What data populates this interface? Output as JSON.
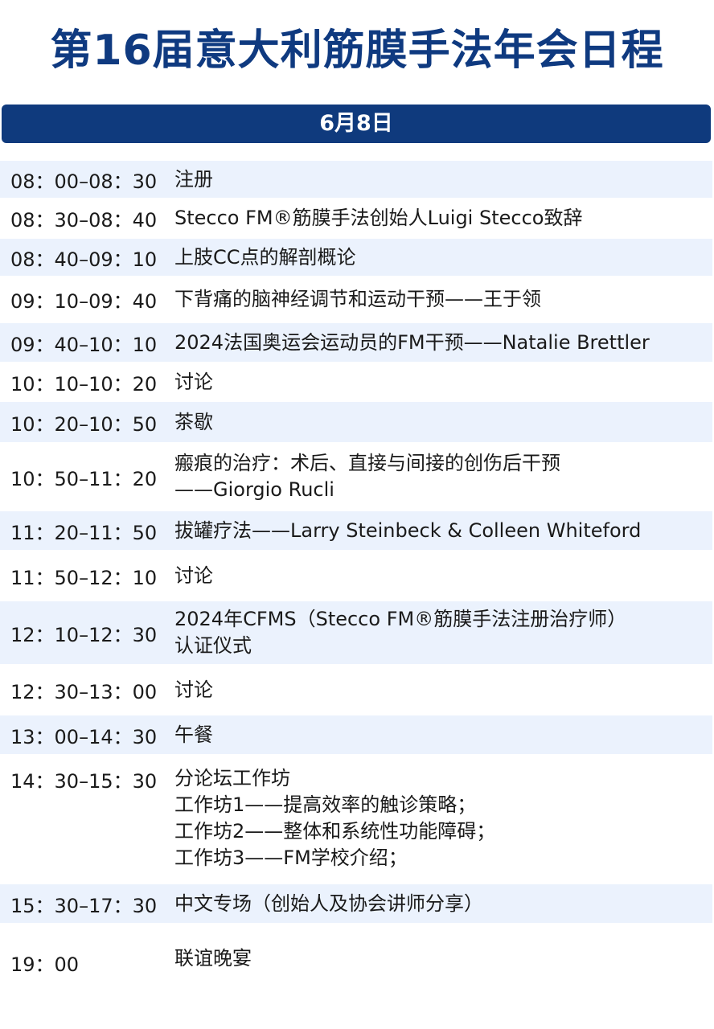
{
  "title": "第16届意大利筋膜手法年会日程",
  "date": "6月8日",
  "colors": {
    "primary": "#0f3a7d",
    "row_shade": "#ebf2fd"
  },
  "schedule": [
    {
      "time": "08：00–08：30",
      "desc": "注册"
    },
    {
      "time": "08：30–08：40",
      "desc": "Stecco FM®筋膜手法创始人Luigi Stecco致辞"
    },
    {
      "time": "08：40–09：10",
      "desc": "上肢CC点的解剖概论"
    },
    {
      "time": "09：10–09：40",
      "desc": "下背痛的脑神经调节和运动干预——王于领"
    },
    {
      "time": "09：40–10：10",
      "desc": "2024法国奥运会运动员的FM干预——Natalie Brettler"
    },
    {
      "time": "10：10–10：20",
      "desc": "讨论"
    },
    {
      "time": "10：20–10：50",
      "desc": "茶歇"
    },
    {
      "time": "10：50–11：20",
      "desc": "瘢痕的治疗：术后、直接与间接的创伤后干预\n——Giorgio Rucli"
    },
    {
      "time": "11：20–11：50",
      "desc": "拔罐疗法——Larry Steinbeck & Colleen Whiteford"
    },
    {
      "time": "11：50–12：10",
      "desc": "讨论"
    },
    {
      "time": "12：10–12：30",
      "desc": "2024年CFMS（Stecco FM®筋膜手法注册治疗师）\n认证仪式"
    },
    {
      "time": "12：30–13：00",
      "desc": "讨论"
    },
    {
      "time": "13：00–14：30",
      "desc": "午餐"
    },
    {
      "time": "14：30–15：30",
      "desc": "分论坛工作坊\n工作坊1——提高效率的触诊策略；\n工作坊2——整体和系统性功能障碍；\n工作坊3——FM学校介绍；"
    },
    {
      "time": "15：30–17：30",
      "desc": "中文专场（创始人及协会讲师分享）"
    },
    {
      "time": "19：00",
      "desc": "联谊晚宴"
    }
  ]
}
